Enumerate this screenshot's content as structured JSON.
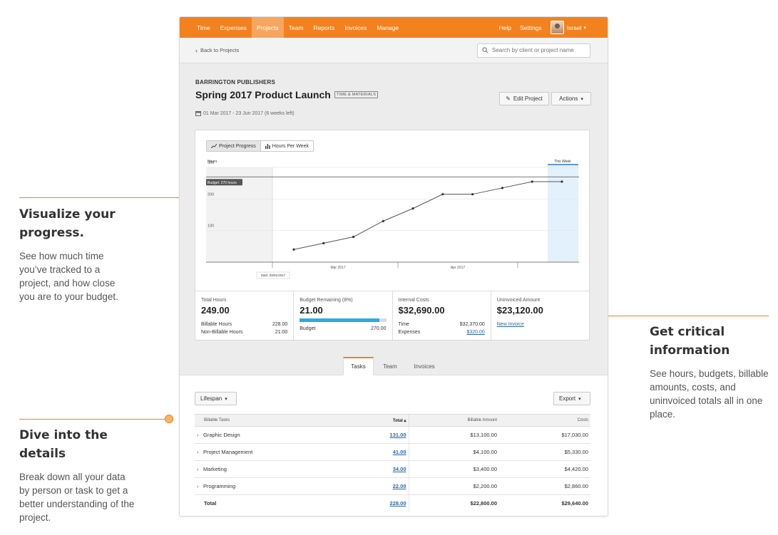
{
  "annotations": {
    "visualize": {
      "title": "Visualize your progress.",
      "body": "See how much time you’ve tracked to a project, and how close you are to your budget."
    },
    "critical": {
      "title": "Get critical information",
      "body": "See hours, budgets, billable amounts, costs, and uninvoiced totals all in one place."
    },
    "details": {
      "title": "Dive into the details",
      "body": "Break down all your data by person or task to get a better understanding of the project."
    }
  },
  "colors": {
    "brand": "#f3811e",
    "accent_blue": "#29abe2",
    "link": "#2a6aa6"
  },
  "nav": {
    "items": [
      "Time",
      "Expenses",
      "Projects",
      "Team",
      "Reports",
      "Invoices",
      "Manage"
    ],
    "active": "Projects",
    "help": "Help",
    "settings": "Settings",
    "user": "Israel",
    "user_chevron": "⌄"
  },
  "subbar": {
    "back": "Back to Projects",
    "search_placeholder": "Search by client or project name"
  },
  "project": {
    "client": "BARRINGTON PUBLISHERS",
    "name": "Spring 2017 Product Launch",
    "badge": "TIME & MATERIALS",
    "dates": "01 Mar 2017 - 23 Jun 2017 (6 weeks left)",
    "edit_label": "Edit Project",
    "actions_label": "Actions"
  },
  "chart_toggle": {
    "progress": "Project Progress",
    "hours_per_week": "Hours Per Week"
  },
  "chart_data": {
    "type": "line",
    "ylabel": "Hours",
    "yticks": [
      "300",
      "200",
      "100"
    ],
    "ylim": [
      0,
      300
    ],
    "xticks": [
      "Mar 2017",
      "Apr 2017"
    ],
    "budget_label": "Budget: 270 hours",
    "budget": 270,
    "start_label": "Start: 03/01/2017",
    "this_week_label": "This Week",
    "series": [
      {
        "values": [
          40,
          60,
          80,
          130,
          170,
          215,
          215,
          235,
          255,
          255
        ]
      }
    ]
  },
  "stats": {
    "total_hours": {
      "label": "Total Hours",
      "value": "249.00",
      "billable_label": "Billable Hours",
      "billable": "228.00",
      "nonbillable_label": "Non-Billable Hours",
      "nonbillable": "21.00"
    },
    "budget": {
      "label": "Budget Remaining (8%)",
      "value": "21.00",
      "budget_label": "Budget",
      "budget": "270.00",
      "used_fraction": 0.92
    },
    "costs": {
      "label": "Internal Costs",
      "value": "$32,690.00",
      "time_label": "Time",
      "time": "$32,370.00",
      "expenses_label": "Expenses",
      "expenses": "$320.00"
    },
    "uninvoiced": {
      "label": "Uninvoiced Amount",
      "value": "$23,120.00",
      "link": "New Invoice"
    }
  },
  "tabs": [
    "Tasks",
    "Team",
    "Invoices"
  ],
  "controls": {
    "lifespan": "Lifespan",
    "export": "Export"
  },
  "table": {
    "headers": [
      "Billable Tasks",
      "Total",
      "Billable Amount",
      "Costs"
    ],
    "rows": [
      {
        "task": "Graphic Design",
        "total": "131.00",
        "amount": "$13,100.00",
        "costs": "$17,030.00"
      },
      {
        "task": "Project Management",
        "total": "41.00",
        "amount": "$4,100.00",
        "costs": "$5,330.00"
      },
      {
        "task": "Marketing",
        "total": "34.00",
        "amount": "$3,400.00",
        "costs": "$4,420.00"
      },
      {
        "task": "Programming",
        "total": "22.00",
        "amount": "$2,200.00",
        "costs": "$2,860.00"
      }
    ],
    "total": {
      "label": "Total",
      "total": "228.00",
      "amount": "$22,800.00",
      "costs": "$29,640.00"
    }
  }
}
